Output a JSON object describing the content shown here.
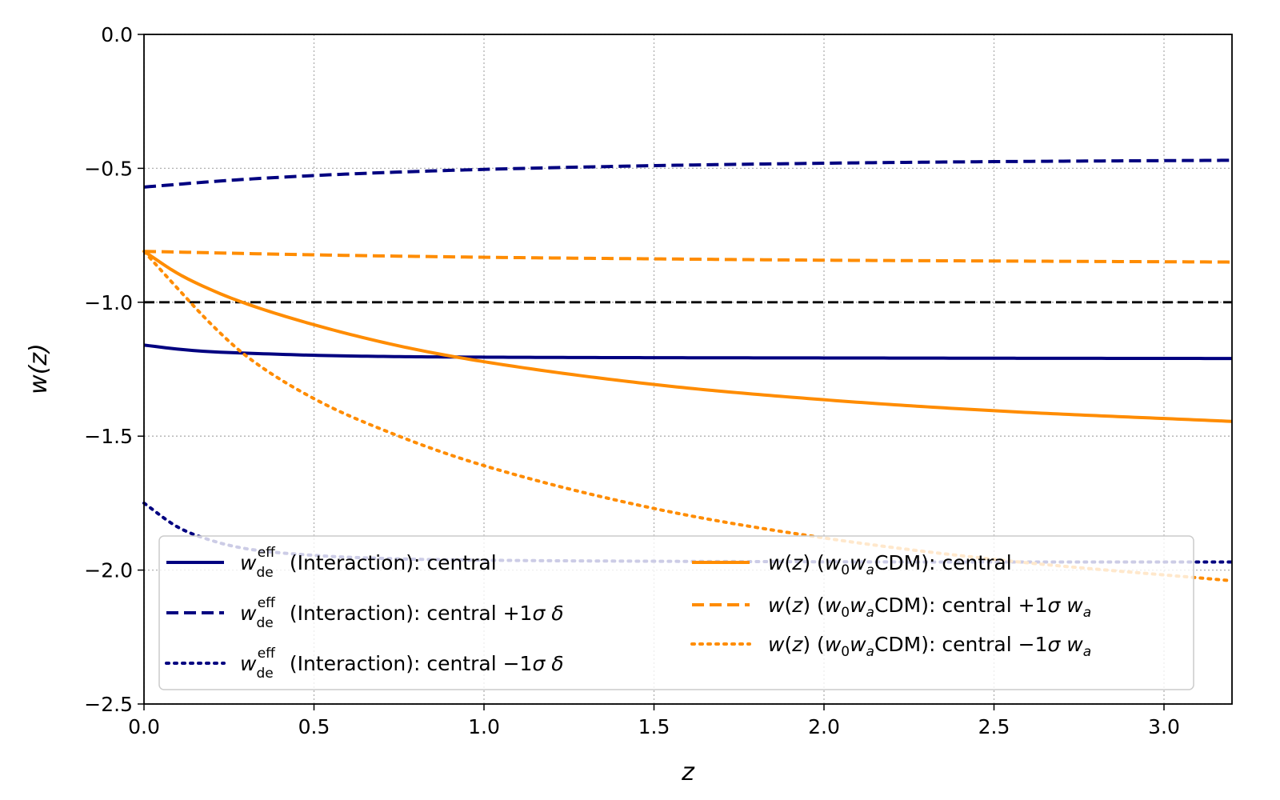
{
  "chart_data": {
    "type": "line",
    "title": "",
    "xlabel": "z",
    "ylabel": "w(z)",
    "xlim": [
      0.0,
      3.2
    ],
    "ylim": [
      -2.5,
      0.0
    ],
    "xticks": [
      "0.0",
      "0.5",
      "1.0",
      "1.5",
      "2.0",
      "2.5",
      "3.0"
    ],
    "yticks": [
      "0.0",
      "−0.5",
      "−1.0",
      "−1.5",
      "−2.0",
      "−2.5"
    ],
    "grid": true,
    "legend_position": "lower-center",
    "reference_line": {
      "y": -1.0,
      "color": "#000000",
      "style": "dashed"
    },
    "colors": {
      "interaction": "#000080",
      "w0wa": "#ff8c00"
    },
    "series": [
      {
        "name": "w_de^eff (Interaction): central",
        "group": "interaction",
        "style": "solid",
        "x": [
          0,
          0.1,
          0.2,
          0.3,
          0.5,
          0.75,
          1.0,
          1.5,
          2.0,
          2.5,
          3.2
        ],
        "y": [
          -1.16,
          -1.175,
          -1.185,
          -1.19,
          -1.198,
          -1.203,
          -1.205,
          -1.207,
          -1.208,
          -1.209,
          -1.21
        ]
      },
      {
        "name": "w_de^eff (Interaction): central +1σ δ",
        "group": "interaction",
        "style": "dashed",
        "x": [
          0,
          0.25,
          0.5,
          0.75,
          1.0,
          1.5,
          2.0,
          2.5,
          3.2
        ],
        "y": [
          -0.57,
          -0.545,
          -0.527,
          -0.514,
          -0.504,
          -0.49,
          -0.481,
          -0.475,
          -0.47
        ]
      },
      {
        "name": "w_de^eff (Interaction): central −1σ δ",
        "group": "interaction",
        "style": "dotted",
        "x": [
          0,
          0.1,
          0.2,
          0.3,
          0.5,
          0.75,
          1.0,
          1.5,
          2.0,
          2.5,
          3.2
        ],
        "y": [
          -1.75,
          -1.84,
          -1.89,
          -1.92,
          -1.945,
          -1.958,
          -1.963,
          -1.967,
          -1.969,
          -1.97,
          -1.97
        ]
      },
      {
        "name": "w(z) (w0waCDM): central",
        "group": "w0wa",
        "style": "solid",
        "x": [
          0,
          0.1,
          0.2,
          0.3,
          0.5,
          0.75,
          1.0,
          1.5,
          2.0,
          2.5,
          3.2
        ],
        "y": [
          -0.81,
          -0.893,
          -0.955,
          -1.005,
          -1.084,
          -1.163,
          -1.222,
          -1.307,
          -1.364,
          -1.405,
          -1.445
        ]
      },
      {
        "name": "w(z) (w0waCDM): central +1σ wa",
        "group": "w0wa",
        "style": "dashed",
        "x": [
          0,
          0.5,
          1.0,
          1.5,
          2.0,
          2.5,
          3.2
        ],
        "y": [
          -0.81,
          -0.823,
          -0.832,
          -0.838,
          -0.843,
          -0.846,
          -0.85
        ]
      },
      {
        "name": "w(z) (w0waCDM): central −1σ wa",
        "group": "w0wa",
        "style": "dotted",
        "x": [
          0,
          0.1,
          0.2,
          0.3,
          0.5,
          0.75,
          1.0,
          1.5,
          2.0,
          2.5,
          3.2
        ],
        "y": [
          -0.81,
          -0.95,
          -1.085,
          -1.2,
          -1.36,
          -1.5,
          -1.61,
          -1.77,
          -1.88,
          -1.96,
          -2.04
        ]
      }
    ]
  }
}
